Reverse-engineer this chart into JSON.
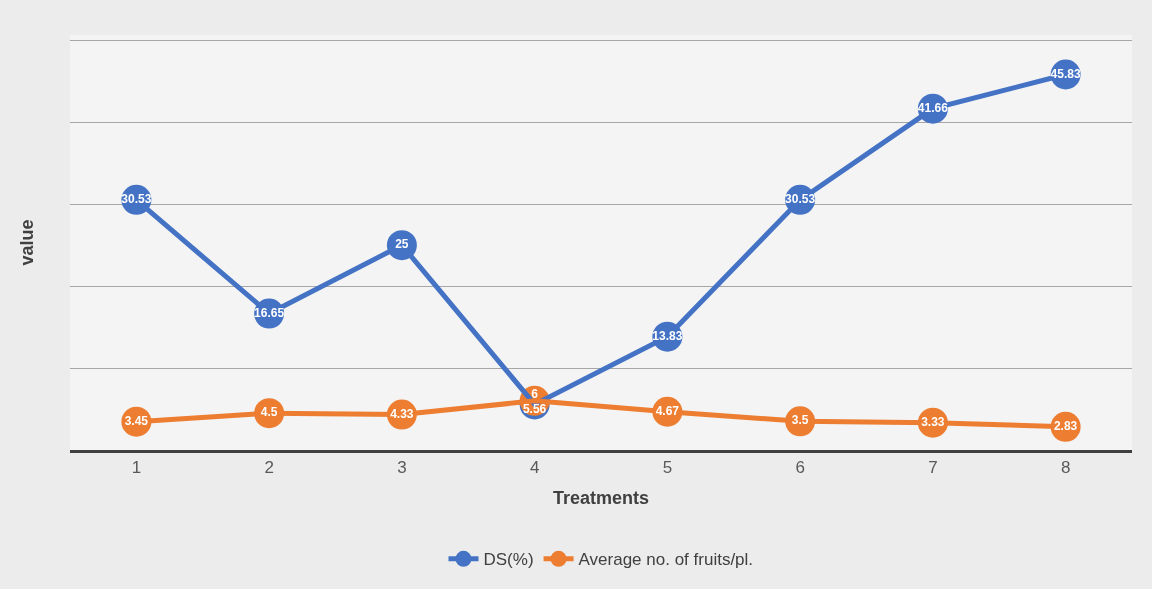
{
  "chart_data": {
    "type": "line",
    "xlabel": "Treatments",
    "ylabel": "value",
    "categories": [
      "1",
      "2",
      "3",
      "4",
      "5",
      "6",
      "7",
      "8"
    ],
    "series": [
      {
        "name": "DS(%)",
        "color": "#4472c4",
        "values": [
          30.53,
          16.65,
          25,
          5.56,
          13.83,
          30.53,
          41.66,
          45.83
        ]
      },
      {
        "name": "Average no. of fruits/pl.",
        "color": "#ed7d31",
        "values": [
          3.45,
          4.5,
          4.33,
          6,
          4.67,
          3.5,
          3.33,
          2.83
        ]
      }
    ],
    "tick_labels": "x",
    "grid": "y",
    "legend": "bottom",
    "marker": "circle",
    "line_style": "solid",
    "data_labels": true
  }
}
